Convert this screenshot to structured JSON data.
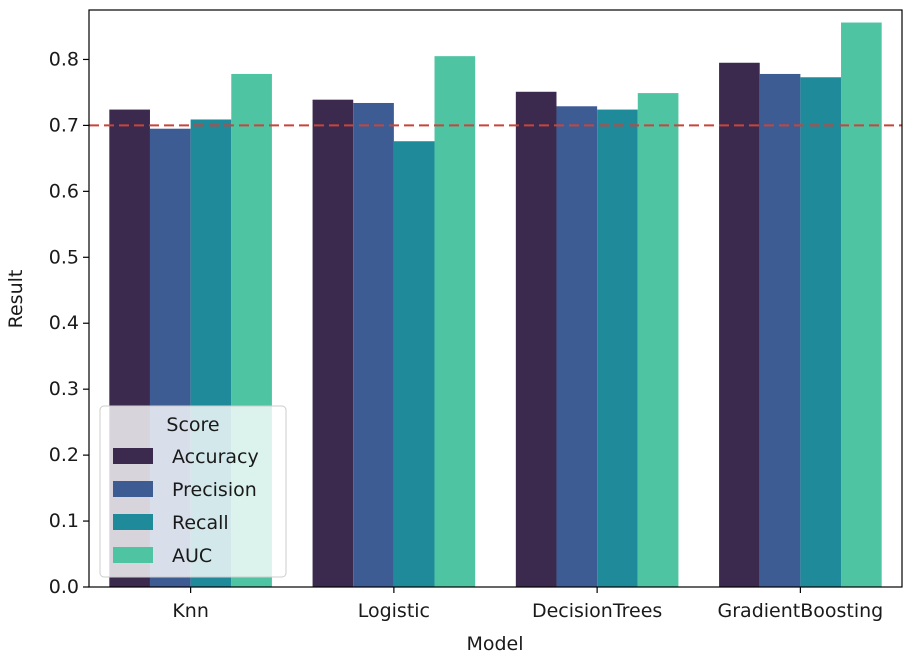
{
  "chart_data": {
    "type": "bar",
    "title": "",
    "xlabel": "Model",
    "ylabel": "Result",
    "categories": [
      "Knn",
      "Logistic",
      "DecisionTrees",
      "GradientBoosting"
    ],
    "series": [
      {
        "name": "Accuracy",
        "color": "#3b2a4e",
        "values": [
          0.724,
          0.739,
          0.751,
          0.795
        ]
      },
      {
        "name": "Precision",
        "color": "#3e5c94",
        "values": [
          0.695,
          0.734,
          0.729,
          0.778
        ]
      },
      {
        "name": "Recall",
        "color": "#1f8b9a",
        "values": [
          0.709,
          0.676,
          0.724,
          0.773
        ]
      },
      {
        "name": "AUC",
        "color": "#4fc4a3",
        "values": [
          0.778,
          0.805,
          0.749,
          0.856
        ]
      }
    ],
    "ylim": [
      0,
      0.875
    ],
    "yticks": [
      "0.0",
      "0.1",
      "0.2",
      "0.3",
      "0.4",
      "0.5",
      "0.6",
      "0.7",
      "0.8"
    ],
    "reference_line": {
      "value": 0.7,
      "color": "#c9443a",
      "style": "dashed"
    },
    "legend": {
      "title": "Score",
      "placement": "lower-left"
    },
    "grid": false
  }
}
